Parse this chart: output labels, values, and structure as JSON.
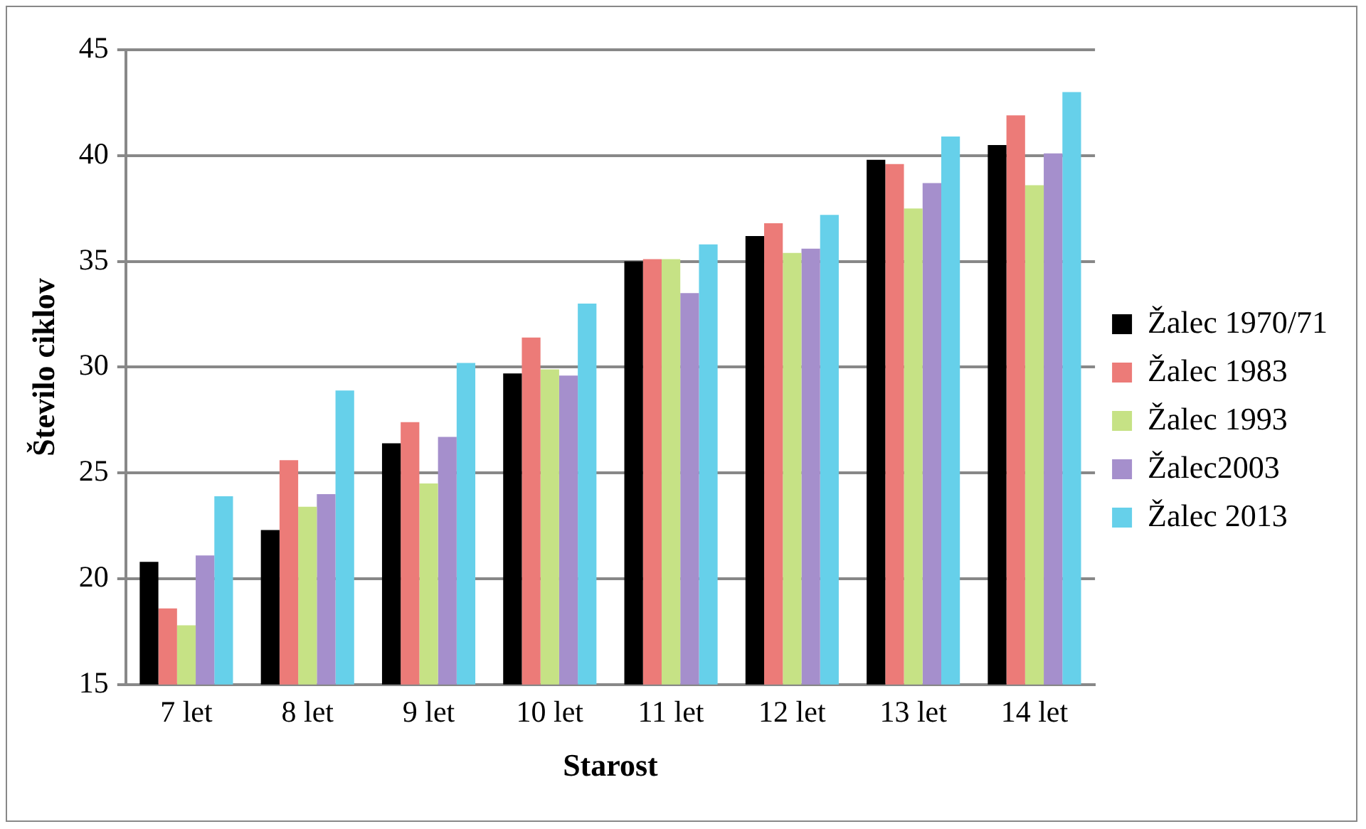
{
  "chart_data": {
    "type": "bar",
    "xlabel": "Starost",
    "ylabel": "Število ciklov",
    "categories": [
      "7 let",
      "8 let",
      "9 let",
      "10 let",
      "11 let",
      "12 let",
      "13 let",
      "14 let"
    ],
    "series": [
      {
        "name": "Žalec 1970/71",
        "color": "#000000",
        "values": [
          20.8,
          22.3,
          26.4,
          29.7,
          35.0,
          36.2,
          39.8,
          40.5
        ]
      },
      {
        "name": "Žalec 1983",
        "color": "#ec7b78",
        "values": [
          18.6,
          25.6,
          27.4,
          31.4,
          35.1,
          36.8,
          39.6,
          41.9
        ]
      },
      {
        "name": "Žalec 1993",
        "color": "#c6e285",
        "values": [
          17.8,
          23.4,
          24.5,
          29.9,
          35.1,
          35.4,
          37.5,
          38.6
        ]
      },
      {
        "name": "Žalec2003",
        "color": "#a58fcc",
        "values": [
          21.1,
          24.0,
          26.7,
          29.6,
          33.5,
          35.6,
          38.7,
          40.1
        ]
      },
      {
        "name": "Žalec 2013",
        "color": "#66d0ea",
        "values": [
          23.9,
          28.9,
          30.2,
          33.0,
          35.8,
          37.2,
          40.9,
          43.0
        ]
      }
    ],
    "ylim": [
      15,
      45
    ],
    "yticks": [
      15,
      20,
      25,
      30,
      35,
      40,
      45
    ],
    "grid": "y",
    "legend": "right"
  }
}
